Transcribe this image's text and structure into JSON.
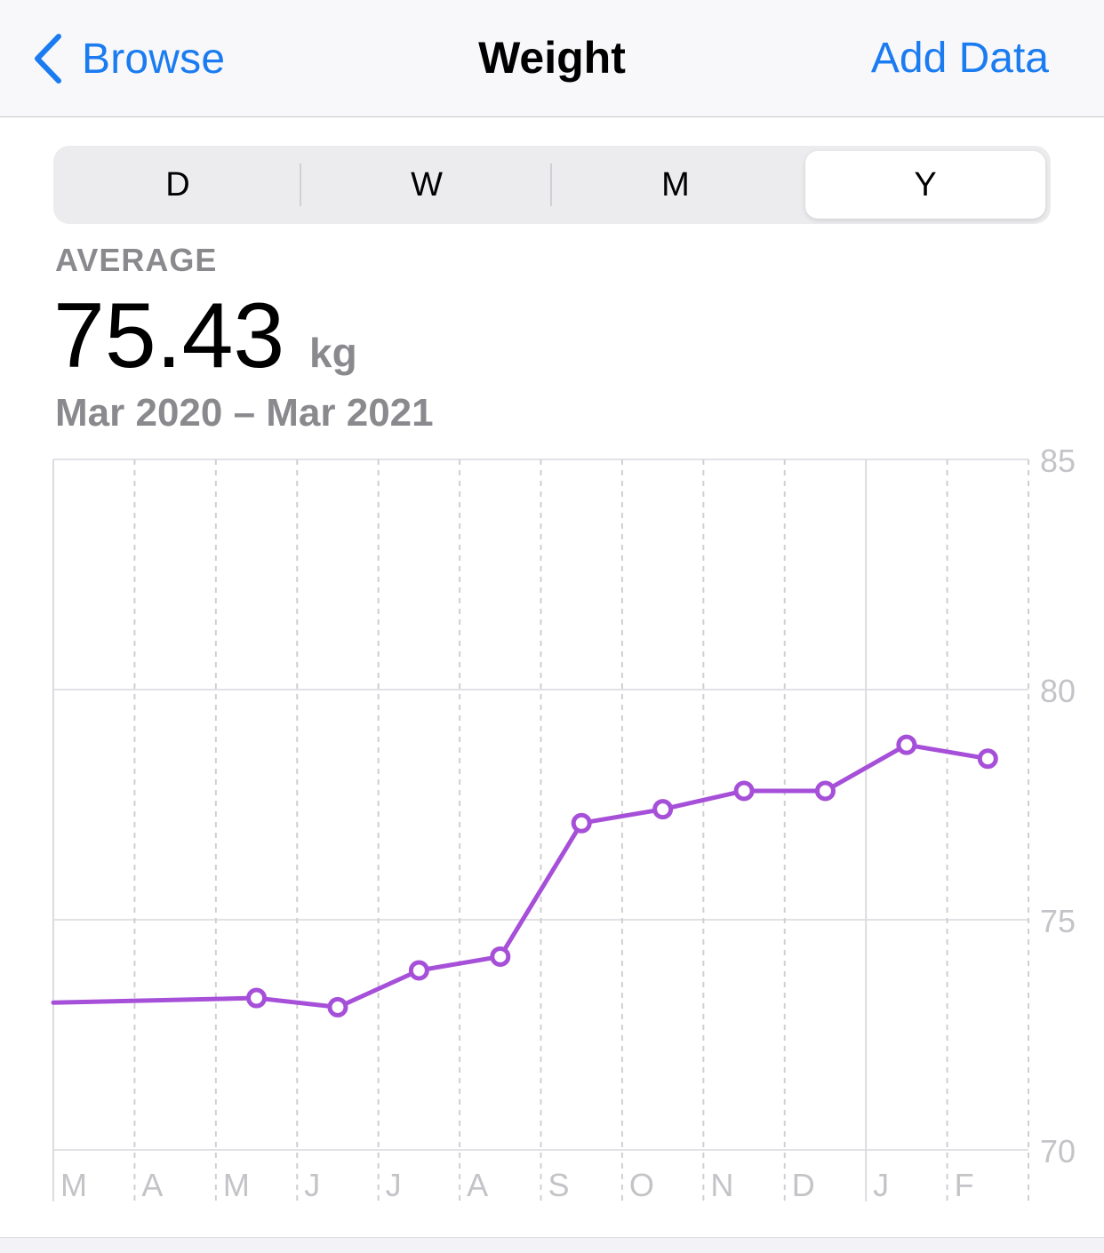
{
  "navbar": {
    "back_label": "Browse",
    "title": "Weight",
    "add_label": "Add Data"
  },
  "segments": [
    {
      "label": "D",
      "selected": false
    },
    {
      "label": "W",
      "selected": false
    },
    {
      "label": "M",
      "selected": false
    },
    {
      "label": "Y",
      "selected": true
    }
  ],
  "summary": {
    "label": "AVERAGE",
    "value": "75.43",
    "unit": "kg",
    "range": "Mar 2020 – Mar 2021"
  },
  "colors": {
    "accent": "#1a7cf0",
    "series": "#a64fd8",
    "secondary_text": "#8a8a8e"
  },
  "chart_data": {
    "type": "line",
    "categories": [
      "M",
      "A",
      "M",
      "J",
      "J",
      "A",
      "S",
      "O",
      "N",
      "D",
      "J",
      "F"
    ],
    "ylim": [
      70,
      85
    ],
    "yticks": [
      "85",
      "80",
      "75",
      "70"
    ],
    "series": [
      {
        "points": [
          {
            "x": -0.25,
            "y": 73.2,
            "marker": false
          },
          {
            "x": 2.5,
            "y": 73.3,
            "marker": true
          },
          {
            "x": 3.5,
            "y": 73.1,
            "marker": true
          },
          {
            "x": 4.5,
            "y": 73.9,
            "marker": true
          },
          {
            "x": 5.5,
            "y": 74.2,
            "marker": true
          },
          {
            "x": 6.5,
            "y": 77.1,
            "marker": true
          },
          {
            "x": 7.5,
            "y": 77.4,
            "marker": true
          },
          {
            "x": 8.5,
            "y": 77.8,
            "marker": true
          },
          {
            "x": 9.5,
            "y": 77.8,
            "marker": true
          },
          {
            "x": 10.5,
            "y": 78.8,
            "marker": true
          },
          {
            "x": 11.5,
            "y": 78.5,
            "marker": true
          }
        ]
      }
    ]
  }
}
